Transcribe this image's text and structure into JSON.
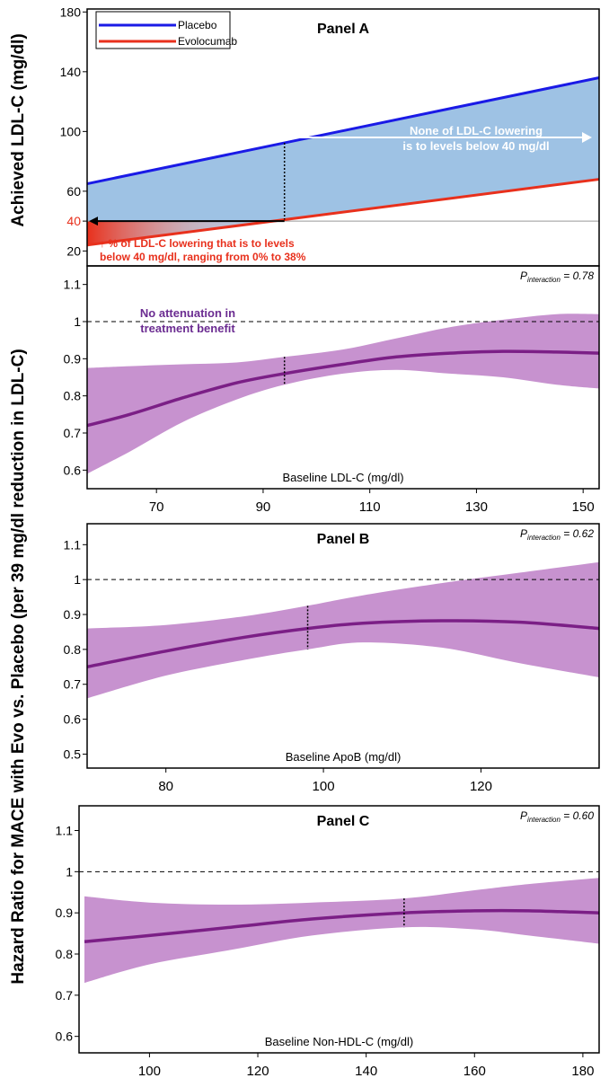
{
  "figure": {
    "y_label_top": "Achieved LDL-C (mg/dl)",
    "y_label_hr": "Hazard Ratio for MACE with Evo vs. Placebo (per 39 mg/dl reduction in LDL-C)"
  },
  "colors": {
    "placebo": "#1a1ae6",
    "evolocumab": "#e8301c",
    "gap_fill": "#9ec2e4",
    "hr_line": "#7b1f86",
    "hr_band": "#c792cf",
    "annotation_red": "#e8301c",
    "annotation_purple": "#6b2c91"
  },
  "chart_data": [
    {
      "type": "line",
      "panel": "A-top",
      "title": "Panel A",
      "ylabel": "Achieved LDL-C (mg/dl)",
      "ylim": [
        10,
        182
      ],
      "xlim": [
        57,
        153
      ],
      "yticks": [
        20,
        40,
        60,
        100,
        140,
        180
      ],
      "ytick_labels": [
        "20",
        "40",
        "60",
        "100",
        "140",
        "180"
      ],
      "highlight_tick": "40",
      "reference_line_y": 40,
      "dotted_x": 94,
      "series": [
        {
          "name": "Placebo",
          "x": [
            57,
            153
          ],
          "y": [
            65,
            136
          ]
        },
        {
          "name": "Evolocumab",
          "x": [
            57,
            153
          ],
          "y": [
            24,
            68
          ]
        }
      ],
      "legend": {
        "position": "top-left",
        "entries": [
          "Placebo",
          "Evolocumab"
        ]
      },
      "annotations": {
        "top_lines": [
          "None of LDL-C lowering",
          "is to levels below 40 mg/dl"
        ],
        "bottom_lines": [
          "↑ % of LDL-C lowering that is to levels",
          "below 40 mg/dl, ranging from 0% to 38%"
        ]
      }
    },
    {
      "type": "line",
      "panel": "A-bottom",
      "xlabel": "Baseline LDL-C (mg/dl)",
      "xlim": [
        57,
        153
      ],
      "ylim": [
        0.55,
        1.15
      ],
      "xticks": [
        70,
        90,
        110,
        130,
        150
      ],
      "xtick_labels": [
        "70",
        "90",
        "110",
        "130",
        "150"
      ],
      "yticks": [
        0.6,
        0.7,
        0.8,
        0.9,
        1.0,
        1.1
      ],
      "ytick_labels": [
        "0.6",
        "0.7",
        "0.8",
        "0.9",
        "1",
        "1.1"
      ],
      "reference_line_y": 1.0,
      "dotted_x": 94,
      "p_interaction": {
        "label": "P",
        "sub": "interaction",
        "value": " = 0.78"
      },
      "annotation_lines": [
        "No attenuation in",
        "treatment benefit"
      ],
      "x": [
        57,
        65,
        75,
        85,
        94,
        105,
        115,
        125,
        135,
        145,
        153
      ],
      "hr": [
        0.72,
        0.75,
        0.795,
        0.835,
        0.86,
        0.885,
        0.905,
        0.915,
        0.92,
        0.918,
        0.915
      ],
      "lower": [
        0.59,
        0.65,
        0.73,
        0.79,
        0.83,
        0.86,
        0.87,
        0.86,
        0.85,
        0.83,
        0.82
      ],
      "upper": [
        0.875,
        0.88,
        0.885,
        0.89,
        0.905,
        0.925,
        0.955,
        0.985,
        1.005,
        1.02,
        1.02
      ]
    },
    {
      "type": "line",
      "panel": "B",
      "title": "Panel B",
      "xlabel": "Baseline ApoB (mg/dl)",
      "xlim": [
        70,
        135
      ],
      "ylim": [
        0.46,
        1.16
      ],
      "xticks": [
        80,
        100,
        120
      ],
      "xtick_labels": [
        "80",
        "100",
        "120"
      ],
      "yticks": [
        0.5,
        0.6,
        0.7,
        0.8,
        0.9,
        1.0,
        1.1
      ],
      "ytick_labels": [
        "0.5",
        "0.6",
        "0.7",
        "0.8",
        "0.9",
        "1",
        "1.1"
      ],
      "reference_line_y": 1.0,
      "dotted_x": 98,
      "p_interaction": {
        "label": "P",
        "sub": "interaction",
        "value": " = 0.62"
      },
      "x": [
        70,
        80,
        90,
        98,
        105,
        115,
        125,
        135
      ],
      "hr": [
        0.75,
        0.795,
        0.835,
        0.86,
        0.875,
        0.882,
        0.878,
        0.86
      ],
      "lower": [
        0.66,
        0.725,
        0.77,
        0.8,
        0.82,
        0.805,
        0.76,
        0.72
      ],
      "upper": [
        0.86,
        0.87,
        0.895,
        0.925,
        0.955,
        0.99,
        1.02,
        1.05
      ]
    },
    {
      "type": "line",
      "panel": "C",
      "title": "Panel C",
      "xlabel": "Baseline Non-HDL-C (mg/dl)",
      "xlim": [
        87,
        183
      ],
      "ylim": [
        0.56,
        1.16
      ],
      "xticks": [
        100,
        120,
        140,
        160,
        180
      ],
      "xtick_labels": [
        "100",
        "120",
        "140",
        "160",
        "180"
      ],
      "yticks": [
        0.6,
        0.7,
        0.8,
        0.9,
        1.0,
        1.1
      ],
      "ytick_labels": [
        "0.6",
        "0.7",
        "0.8",
        "0.9",
        "1",
        "1.1"
      ],
      "reference_line_y": 1.0,
      "dotted_x": 147,
      "p_interaction": {
        "label": "P",
        "sub": "interaction",
        "value": " = 0.60"
      },
      "x": [
        88,
        100,
        115,
        130,
        147,
        160,
        170,
        183
      ],
      "hr": [
        0.83,
        0.845,
        0.865,
        0.885,
        0.9,
        0.905,
        0.905,
        0.9
      ],
      "lower": [
        0.73,
        0.775,
        0.81,
        0.845,
        0.865,
        0.86,
        0.845,
        0.825
      ],
      "upper": [
        0.94,
        0.925,
        0.92,
        0.925,
        0.935,
        0.955,
        0.97,
        0.985
      ]
    }
  ]
}
